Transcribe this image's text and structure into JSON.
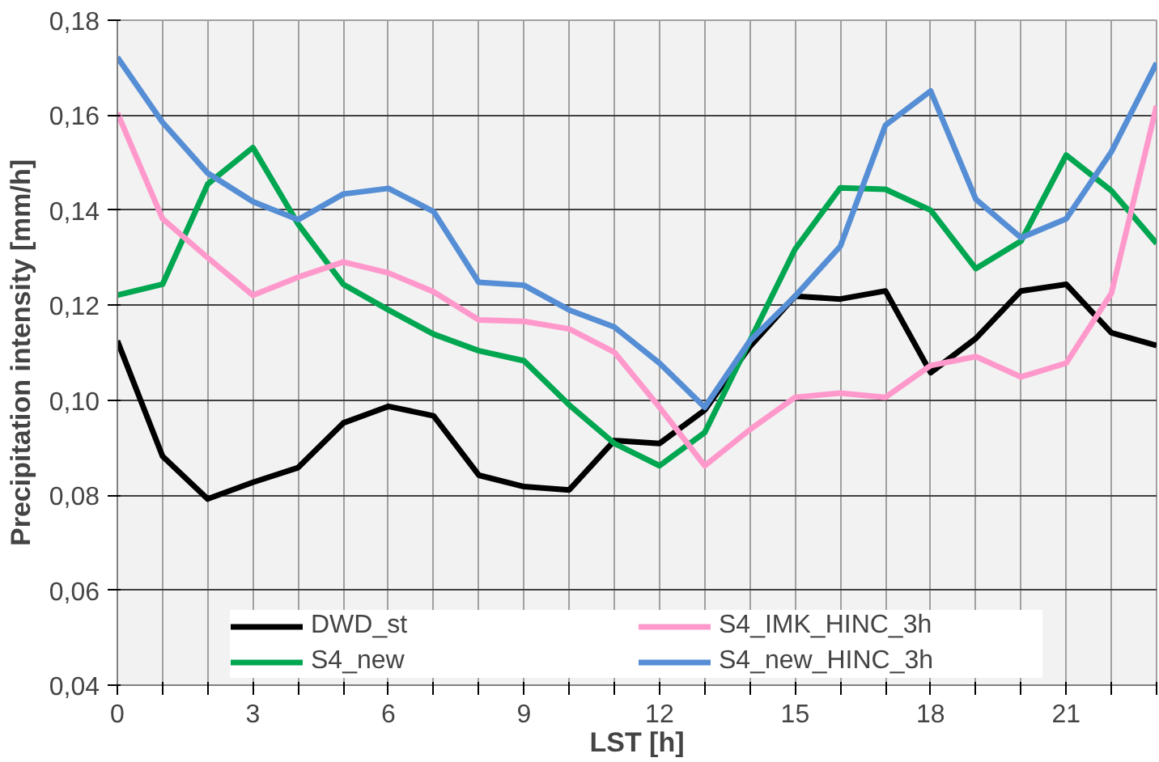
{
  "chart_data": {
    "type": "line",
    "xlabel": "LST [h]",
    "ylabel": "Precipitation intensity [mm/h]",
    "x": [
      0,
      1,
      2,
      3,
      4,
      5,
      6,
      7,
      8,
      9,
      10,
      11,
      12,
      13,
      14,
      15,
      16,
      17,
      18,
      19,
      20,
      21,
      22,
      23
    ],
    "series": [
      {
        "name": "DWD_st",
        "color": "#000000",
        "values": [
          0.1125,
          0.0882,
          0.0792,
          0.0827,
          0.0858,
          0.0952,
          0.0987,
          0.0967,
          0.0842,
          0.0818,
          0.0811,
          0.0915,
          0.0909,
          0.0979,
          0.1113,
          0.1219,
          0.1213,
          0.123,
          0.1058,
          0.113,
          0.123,
          0.1244,
          0.1142,
          0.1115
        ]
      },
      {
        "name": "S4_new",
        "color": "#00a650",
        "values": [
          0.1221,
          0.1244,
          0.1455,
          0.1532,
          0.1371,
          0.1244,
          0.119,
          0.1139,
          0.1104,
          0.1083,
          0.099,
          0.0909,
          0.0862,
          0.0932,
          0.1125,
          0.1318,
          0.1447,
          0.1444,
          0.14,
          0.1277,
          0.1335,
          0.1516,
          0.1441,
          0.133
        ]
      },
      {
        "name": "S4_IMK_HINC_3h",
        "color": "#ff99cc",
        "values": [
          0.1605,
          0.1382,
          0.13,
          0.1221,
          0.1259,
          0.1291,
          0.1268,
          0.1228,
          0.1169,
          0.1166,
          0.115,
          0.1101,
          0.0985,
          0.0862,
          0.0938,
          0.1006,
          0.1015,
          0.1006,
          0.1073,
          0.1092,
          0.1049,
          0.1078,
          0.1225,
          0.162
        ]
      },
      {
        "name": "S4_new_HINC_3h",
        "color": "#558ed5",
        "values": [
          0.1722,
          0.1585,
          0.1478,
          0.1418,
          0.138,
          0.1434,
          0.1446,
          0.1397,
          0.1248,
          0.1242,
          0.119,
          0.1154,
          0.1078,
          0.0985,
          0.1125,
          0.1219,
          0.1324,
          0.1579,
          0.1651,
          0.1423,
          0.1342,
          0.1382,
          0.1523,
          0.171
        ]
      }
    ],
    "xlim": [
      0,
      23
    ],
    "xticks": [
      0,
      {
        "value": 1,
        "label": null
      },
      {
        "value": 2,
        "label": null
      },
      3,
      {
        "value": 4,
        "label": null
      },
      {
        "value": 5,
        "label": null
      },
      6,
      {
        "value": 7,
        "label": null
      },
      {
        "value": 8,
        "label": null
      },
      9,
      {
        "value": 10,
        "label": null
      },
      {
        "value": 11,
        "label": null
      },
      12,
      {
        "value": 13,
        "label": null
      },
      {
        "value": 14,
        "label": null
      },
      15,
      {
        "value": 16,
        "label": null
      },
      {
        "value": 17,
        "label": null
      },
      18,
      {
        "value": 19,
        "label": null
      },
      {
        "value": 20,
        "label": null
      },
      21,
      {
        "value": 22,
        "label": null
      },
      {
        "value": 23,
        "label": null
      }
    ],
    "ylim": [
      0.04,
      0.18
    ],
    "yticks": [
      {
        "value": 0.04,
        "label": "0,04"
      },
      {
        "value": 0.06,
        "label": "0,06"
      },
      {
        "value": 0.08,
        "label": "0,08"
      },
      {
        "value": 0.1,
        "label": "0,10"
      },
      {
        "value": 0.12,
        "label": "0,12"
      },
      {
        "value": 0.14,
        "label": "0,14"
      },
      {
        "value": 0.16,
        "label": "0,16"
      },
      {
        "value": 0.18,
        "label": "0,18"
      }
    ],
    "grid": true,
    "legend": "bottom",
    "marker": "none",
    "line_style": "solid"
  }
}
